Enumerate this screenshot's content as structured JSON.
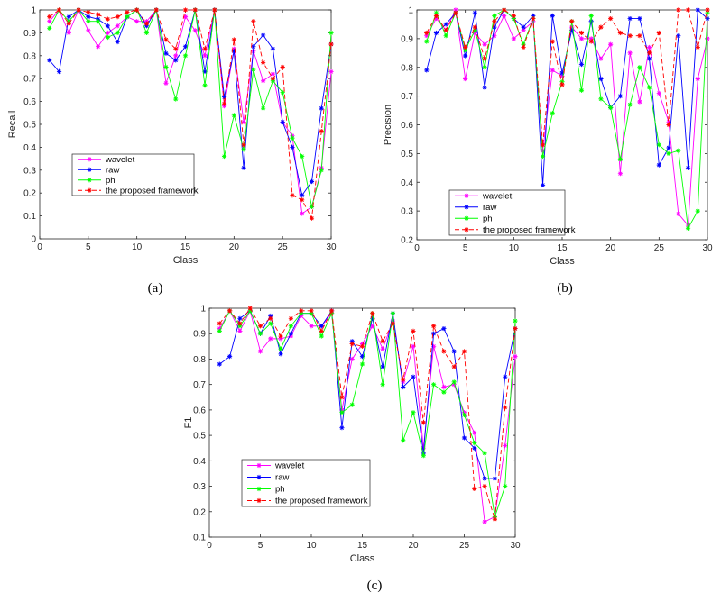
{
  "colors": {
    "wavelet": "#ff00ff",
    "raw": "#0000ff",
    "ph": "#00ff00",
    "proposed": "#ff0000"
  },
  "chart_data": [
    {
      "type": "line",
      "panel_label": "(a)",
      "xlabel": "Class",
      "ylabel": "Recall",
      "xlim": [
        0,
        30
      ],
      "ylim": [
        0,
        1
      ],
      "xticks": [
        0,
        5,
        10,
        15,
        20,
        25,
        30
      ],
      "yticks": [
        0,
        0.1,
        0.2,
        0.3,
        0.4,
        0.5,
        0.6,
        0.7,
        0.8,
        0.9,
        1
      ],
      "legend_position": "lower-left",
      "x": [
        1,
        2,
        3,
        4,
        5,
        6,
        7,
        8,
        9,
        10,
        11,
        12,
        13,
        14,
        15,
        16,
        17,
        18,
        19,
        20,
        21,
        22,
        23,
        24,
        25,
        26,
        27,
        28,
        29,
        30
      ],
      "series": [
        {
          "name": "wavelet",
          "marker": "*",
          "style": "solid",
          "values": [
            0.95,
            1.0,
            0.9,
            1.0,
            0.91,
            0.84,
            0.9,
            0.93,
            0.97,
            0.95,
            0.95,
            1.0,
            0.68,
            0.8,
            0.97,
            0.91,
            0.8,
            1.0,
            0.58,
            0.83,
            0.51,
            0.82,
            0.69,
            0.72,
            0.51,
            0.45,
            0.11,
            0.14,
            0.31,
            0.73
          ]
        },
        {
          "name": "raw",
          "marker": "*",
          "style": "solid",
          "values": [
            0.78,
            0.73,
            0.97,
            1.0,
            0.97,
            0.96,
            0.93,
            0.86,
            0.97,
            1.0,
            0.93,
            1.0,
            0.81,
            0.78,
            0.84,
            1.0,
            0.73,
            1.0,
            0.62,
            0.82,
            0.31,
            0.84,
            0.89,
            0.83,
            0.51,
            0.4,
            0.19,
            0.25,
            0.57,
            0.85
          ]
        },
        {
          "name": "ph",
          "marker": "*",
          "style": "solid",
          "values": [
            0.92,
            1.0,
            0.95,
            1.0,
            0.95,
            0.95,
            0.88,
            0.9,
            0.97,
            1.0,
            0.9,
            1.0,
            0.75,
            0.61,
            0.8,
            1.0,
            0.67,
            1.0,
            0.36,
            0.54,
            0.39,
            0.74,
            0.57,
            0.69,
            0.64,
            0.44,
            0.36,
            0.14,
            0.3,
            0.9
          ]
        },
        {
          "name": "the proposed framework",
          "marker": "*",
          "style": "dashed",
          "values": [
            0.97,
            1.0,
            0.94,
            1.0,
            0.99,
            0.98,
            0.96,
            0.97,
            0.99,
            1.0,
            0.94,
            1.0,
            0.87,
            0.83,
            1.0,
            1.0,
            0.83,
            1.0,
            0.59,
            0.87,
            0.41,
            0.95,
            0.77,
            0.7,
            0.75,
            0.19,
            0.17,
            0.09,
            0.47,
            0.85
          ]
        }
      ]
    },
    {
      "type": "line",
      "panel_label": "(b)",
      "xlabel": "Class",
      "ylabel": "Precision",
      "xlim": [
        0,
        30
      ],
      "ylim": [
        0.2,
        1
      ],
      "xticks": [
        0,
        5,
        10,
        15,
        20,
        25,
        30
      ],
      "yticks": [
        0.2,
        0.3,
        0.4,
        0.5,
        0.6,
        0.7,
        0.8,
        0.9,
        1
      ],
      "legend_position": "lower-left",
      "x": [
        1,
        2,
        3,
        4,
        5,
        6,
        7,
        8,
        9,
        10,
        11,
        12,
        13,
        14,
        15,
        16,
        17,
        18,
        19,
        20,
        21,
        22,
        23,
        24,
        25,
        26,
        27,
        28,
        29,
        30
      ],
      "series": [
        {
          "name": "wavelet",
          "marker": "*",
          "style": "solid",
          "values": [
            0.91,
            0.97,
            0.93,
            1.0,
            0.76,
            0.92,
            0.88,
            0.91,
            0.98,
            0.9,
            0.93,
            0.96,
            0.51,
            0.79,
            0.77,
            0.94,
            0.9,
            0.9,
            0.83,
            0.88,
            0.43,
            0.85,
            0.68,
            0.87,
            0.71,
            0.61,
            0.29,
            0.25,
            0.76,
            0.9
          ]
        },
        {
          "name": "raw",
          "marker": "*",
          "style": "solid",
          "values": [
            0.79,
            0.92,
            0.95,
            0.99,
            0.84,
            0.99,
            0.73,
            0.94,
            1.0,
            0.97,
            0.94,
            0.98,
            0.39,
            0.98,
            0.78,
            0.93,
            0.81,
            0.96,
            0.76,
            0.66,
            0.7,
            0.97,
            0.97,
            0.83,
            0.46,
            0.52,
            0.91,
            0.45,
            1.0,
            0.97
          ]
        },
        {
          "name": "ph",
          "marker": "*",
          "style": "solid",
          "values": [
            0.89,
            0.99,
            0.91,
            0.99,
            0.86,
            0.93,
            0.8,
            0.98,
            1.0,
            0.97,
            0.88,
            0.97,
            0.49,
            0.64,
            0.75,
            0.96,
            0.72,
            0.98,
            0.69,
            0.66,
            0.48,
            0.67,
            0.8,
            0.73,
            0.53,
            0.5,
            0.51,
            0.24,
            0.3,
            0.99
          ]
        },
        {
          "name": "the proposed framework",
          "marker": "*",
          "style": "dashed",
          "values": [
            0.92,
            0.98,
            0.93,
            0.99,
            0.87,
            0.94,
            0.83,
            0.96,
            1.0,
            0.98,
            0.87,
            0.97,
            0.53,
            0.89,
            0.74,
            0.96,
            0.92,
            0.89,
            0.94,
            0.97,
            0.92,
            0.91,
            0.91,
            0.85,
            0.92,
            0.6,
            1.0,
            1.0,
            0.87,
            1.0
          ]
        }
      ]
    },
    {
      "type": "line",
      "panel_label": "(c)",
      "xlabel": "Class",
      "ylabel": "F1",
      "xlim": [
        0,
        30
      ],
      "ylim": [
        0.1,
        1
      ],
      "xticks": [
        0,
        5,
        10,
        15,
        20,
        25,
        30
      ],
      "yticks": [
        0.1,
        0.2,
        0.3,
        0.4,
        0.5,
        0.6,
        0.7,
        0.8,
        0.9,
        1
      ],
      "legend_position": "lower-left",
      "x": [
        1,
        2,
        3,
        4,
        5,
        6,
        7,
        8,
        9,
        10,
        11,
        12,
        13,
        14,
        15,
        16,
        17,
        18,
        19,
        20,
        21,
        22,
        23,
        24,
        25,
        26,
        27,
        28,
        29,
        30
      ],
      "series": [
        {
          "name": "wavelet",
          "marker": "*",
          "style": "solid",
          "values": [
            0.92,
            0.99,
            0.91,
            0.99,
            0.83,
            0.88,
            0.88,
            0.89,
            0.97,
            0.93,
            0.93,
            0.98,
            0.6,
            0.8,
            0.86,
            0.93,
            0.84,
            0.95,
            0.71,
            0.85,
            0.45,
            0.85,
            0.69,
            0.7,
            0.59,
            0.51,
            0.16,
            0.18,
            0.46,
            0.81
          ]
        },
        {
          "name": "raw",
          "marker": "*",
          "style": "solid",
          "values": [
            0.78,
            0.81,
            0.96,
            0.99,
            0.9,
            0.97,
            0.82,
            0.9,
            0.98,
            0.98,
            0.93,
            0.99,
            0.53,
            0.87,
            0.81,
            0.96,
            0.77,
            0.98,
            0.69,
            0.73,
            0.43,
            0.9,
            0.92,
            0.83,
            0.49,
            0.45,
            0.33,
            0.33,
            0.73,
            0.92
          ]
        },
        {
          "name": "ph",
          "marker": "*",
          "style": "solid",
          "values": [
            0.91,
            0.99,
            0.93,
            0.99,
            0.9,
            0.94,
            0.84,
            0.93,
            0.98,
            0.98,
            0.89,
            0.98,
            0.59,
            0.62,
            0.78,
            0.98,
            0.7,
            0.98,
            0.48,
            0.59,
            0.42,
            0.7,
            0.67,
            0.71,
            0.58,
            0.47,
            0.43,
            0.18,
            0.3,
            0.95
          ]
        },
        {
          "name": "the proposed framework",
          "marker": "*",
          "style": "dashed",
          "values": [
            0.94,
            0.99,
            0.94,
            1.0,
            0.93,
            0.96,
            0.89,
            0.96,
            0.99,
            0.99,
            0.91,
            0.99,
            0.65,
            0.86,
            0.85,
            0.98,
            0.87,
            0.94,
            0.72,
            0.91,
            0.55,
            0.93,
            0.83,
            0.77,
            0.83,
            0.29,
            0.3,
            0.17,
            0.61,
            0.92
          ]
        }
      ]
    }
  ]
}
